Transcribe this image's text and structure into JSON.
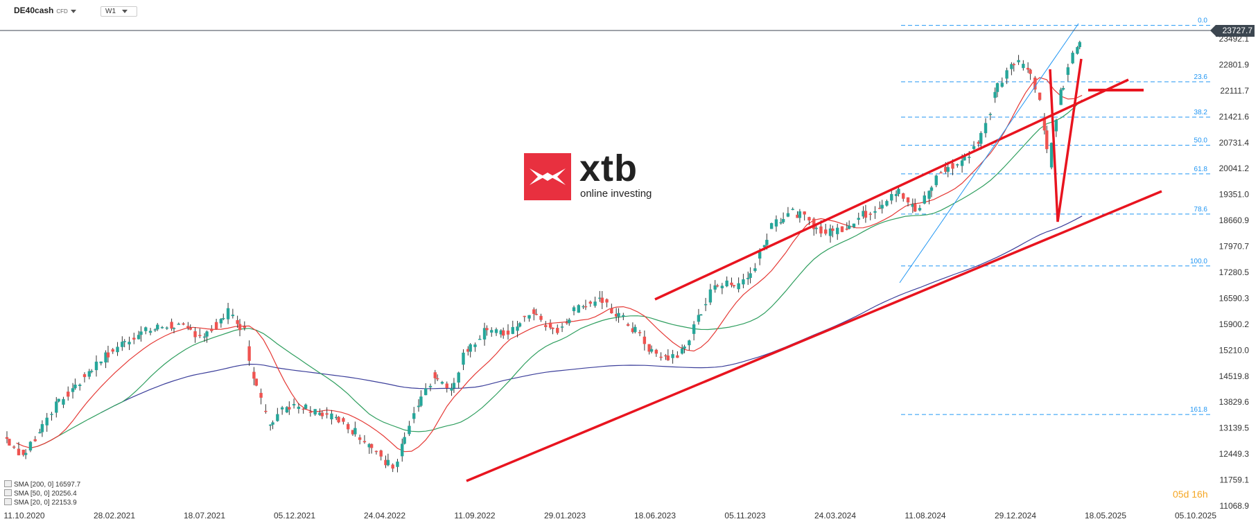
{
  "toolbar": {
    "symbol": "DE40cash",
    "symbol_tag": "CFD",
    "timeframe": "W1"
  },
  "brand": {
    "name": "xtb",
    "tagline": "online investing",
    "color": "#e8303f"
  },
  "timer": {
    "days": "05d",
    "hours": "16h"
  },
  "legend": [
    {
      "label": "SMA [200, 0]",
      "value": "16597.7",
      "color": "#3b3e9a"
    },
    {
      "label": "SMA [50, 0]",
      "value": "20256.4",
      "color": "#2e9e5e"
    },
    {
      "label": "SMA [20, 0]",
      "value": "22153.9",
      "color": "#e53935"
    }
  ],
  "chart_data": {
    "type": "candlestick",
    "current_price": "23727.7",
    "y_ticks": [
      "23492.1",
      "22801.9",
      "22111.7",
      "21421.6",
      "20731.4",
      "20041.2",
      "19351.0",
      "18660.9",
      "17970.7",
      "17280.5",
      "16590.3",
      "15900.2",
      "15210.0",
      "14519.8",
      "13829.6",
      "13139.5",
      "12449.3",
      "11759.1",
      "11068.9"
    ],
    "x_ticks": [
      "11.10.2020",
      "28.02.2021",
      "18.07.2021",
      "05.12.2021",
      "24.04.2022",
      "11.09.2022",
      "29.01.2023",
      "18.06.2023",
      "05.11.2023",
      "24.03.2024",
      "11.08.2024",
      "29.12.2024",
      "18.05.2025",
      "05.10.2025"
    ],
    "fibonacci": [
      {
        "level": "0.0",
        "price": 23850
      },
      {
        "level": "23.6",
        "price": 22350
      },
      {
        "level": "38.2",
        "price": 21410
      },
      {
        "level": "50.0",
        "price": 20660
      },
      {
        "level": "61.8",
        "price": 19900
      },
      {
        "level": "78.6",
        "price": 18830
      },
      {
        "level": "100.0",
        "price": 17450
      },
      {
        "level": "161.8",
        "price": 13500
      }
    ],
    "colors": {
      "up": "#26a69a",
      "down": "#ef5350",
      "annotation": "#e8141f",
      "fib": "#2196f3"
    }
  }
}
